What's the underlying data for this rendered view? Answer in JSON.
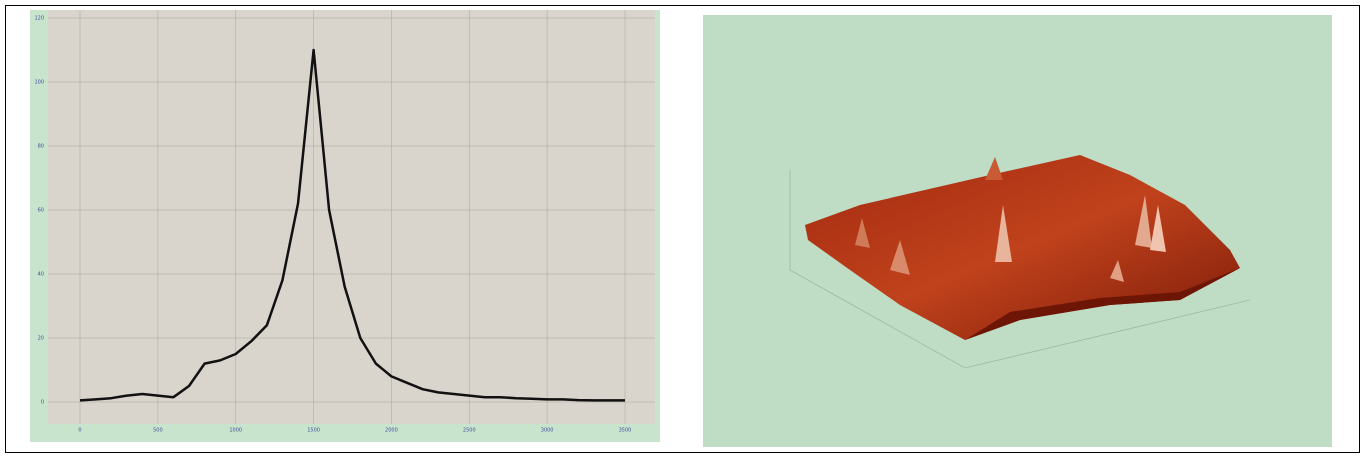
{
  "chart_data": {
    "type": "line",
    "x": [
      0,
      100,
      200,
      300,
      400,
      500,
      600,
      700,
      800,
      900,
      1000,
      1100,
      1200,
      1300,
      1400,
      1500,
      1600,
      1700,
      1800,
      1900,
      2000,
      2100,
      2200,
      2300,
      2400,
      2500,
      2600,
      2700,
      2800,
      2900,
      3000,
      3100,
      3200,
      3300,
      3400,
      3500
    ],
    "values": [
      0.5,
      0.8,
      1.2,
      2,
      2.5,
      2,
      1.5,
      5,
      12,
      13,
      15,
      19,
      24,
      38,
      62,
      110,
      60,
      36,
      20,
      12,
      8,
      6,
      4,
      3,
      2.5,
      2,
      1.5,
      1.5,
      1.2,
      1,
      0.8,
      0.8,
      0.6,
      0.5,
      0.5,
      0.5
    ],
    "color": "#111111",
    "xlim": [
      0,
      3500
    ],
    "xticks": [
      0,
      500,
      1000,
      1500,
      2000,
      2500,
      3000,
      3500
    ],
    "ylim": [
      0,
      120
    ],
    "yticks": [
      0,
      20,
      40,
      60,
      80,
      100,
      120
    ],
    "grid": true
  }
}
